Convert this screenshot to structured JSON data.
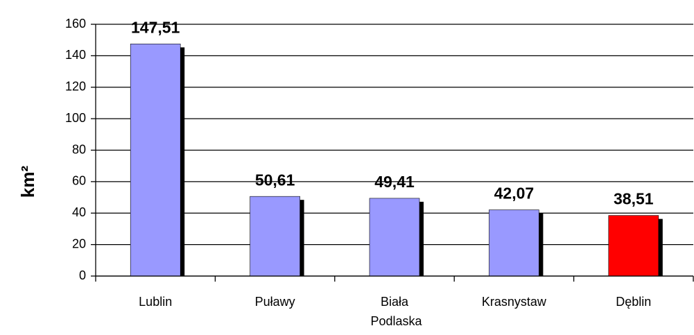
{
  "chart_data": {
    "type": "bar",
    "ylabel": "km²",
    "categories": [
      "Lublin",
      "Puławy",
      "Biała Podlaska",
      "Krasnystaw",
      "Dęblin"
    ],
    "values": [
      147.51,
      50.61,
      49.41,
      42.07,
      38.51
    ],
    "value_labels": [
      "147,51",
      "50,61",
      "49,41",
      "42,07",
      "38,51"
    ],
    "colors": [
      "#9999ff",
      "#9999ff",
      "#9999ff",
      "#9999ff",
      "#ff0000"
    ],
    "ylim": [
      0,
      160
    ],
    "yticks": [
      0,
      20,
      40,
      60,
      80,
      100,
      120,
      140,
      160
    ],
    "grid": true
  }
}
